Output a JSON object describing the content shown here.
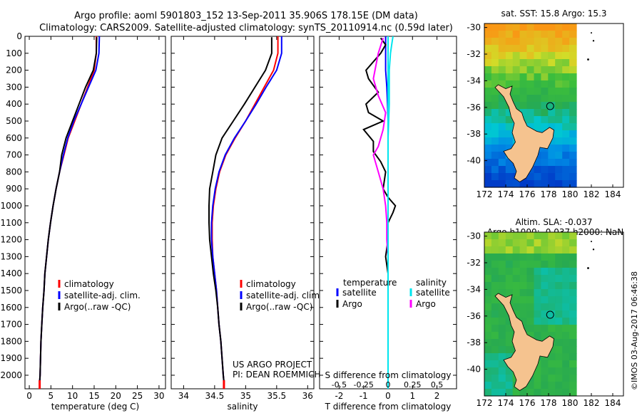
{
  "header": {
    "line1": "Argo profile: aoml 5901803_152 13-Sep-2011 35.906S 178.15E (DM data)",
    "line2": "Climatology: CARS2009. Satellite-adjusted climatology: synTS_20110914.nc (0.59d later)"
  },
  "colors": {
    "climatology": "#ff0000",
    "satellite": "#0000ff",
    "argo": "#000000",
    "sat_sal": "#00e5ee",
    "argo_sal": "#ff00ff"
  },
  "chart_data": [
    {
      "type": "line",
      "id": "temperature-profile",
      "xlabel": "temperature (deg C)",
      "ylabel": "",
      "xlim": [
        -1,
        31.5
      ],
      "ylim": [
        2080,
        0
      ],
      "xticks": [
        0,
        5,
        10,
        15,
        20,
        25,
        30
      ],
      "yticks": [
        0,
        100,
        200,
        300,
        400,
        500,
        600,
        700,
        800,
        900,
        1000,
        1100,
        1200,
        1300,
        1400,
        1500,
        1600,
        1700,
        1800,
        1900,
        2000
      ],
      "legend": [
        "climatology",
        "satellite-adj. clim.",
        "Argo(..raw -QC)"
      ],
      "series": [
        {
          "name": "climatology",
          "color": "#ff0000",
          "points": [
            [
              15.5,
              0
            ],
            [
              15.5,
              100
            ],
            [
              15.0,
              200
            ],
            [
              13.5,
              300
            ],
            [
              12.0,
              400
            ],
            [
              10.5,
              500
            ],
            [
              9.0,
              600
            ],
            [
              8.0,
              700
            ],
            [
              7.0,
              800
            ],
            [
              6.2,
              900
            ],
            [
              5.5,
              1000
            ],
            [
              4.9,
              1100
            ],
            [
              4.4,
              1200
            ],
            [
              4.0,
              1300
            ],
            [
              3.6,
              1400
            ],
            [
              3.4,
              1500
            ],
            [
              3.1,
              1600
            ],
            [
              2.9,
              1700
            ],
            [
              2.7,
              1800
            ],
            [
              2.6,
              1900
            ],
            [
              2.5,
              2000
            ],
            [
              2.4,
              2040
            ]
          ]
        },
        {
          "name": "satellite-adj. clim.",
          "color": "#0000ff",
          "points": [
            [
              16.2,
              0
            ],
            [
              16.1,
              100
            ],
            [
              15.4,
              200
            ],
            [
              13.7,
              300
            ],
            [
              12.0,
              400
            ],
            [
              10.3,
              500
            ],
            [
              8.9,
              600
            ],
            [
              7.9,
              700
            ],
            [
              7.0,
              800
            ],
            [
              6.2,
              900
            ],
            [
              5.5,
              1000
            ],
            [
              4.9,
              1100
            ],
            [
              4.4,
              1200
            ],
            [
              4.0,
              1300
            ],
            [
              3.6,
              1400
            ],
            [
              3.4,
              1500
            ],
            [
              3.1,
              1600
            ],
            [
              2.9,
              1700
            ],
            [
              2.7,
              1800
            ],
            [
              2.6,
              1900
            ],
            [
              2.5,
              2000
            ],
            [
              2.4,
              2040
            ]
          ]
        },
        {
          "name": "Argo(..raw -QC)",
          "color": "#000000",
          "points": [
            [
              15.6,
              5
            ],
            [
              15.5,
              100
            ],
            [
              14.8,
              200
            ],
            [
              13.0,
              300
            ],
            [
              11.5,
              400
            ],
            [
              10.0,
              500
            ],
            [
              8.5,
              600
            ],
            [
              7.5,
              700
            ],
            [
              7.0,
              800
            ],
            [
              6.2,
              900
            ],
            [
              5.5,
              1000
            ],
            [
              4.9,
              1100
            ],
            [
              4.4,
              1200
            ],
            [
              4.0,
              1300
            ],
            [
              3.6,
              1400
            ],
            [
              3.4,
              1500
            ],
            [
              3.1,
              1600
            ],
            [
              2.9,
              1700
            ],
            [
              2.7,
              1800
            ],
            [
              2.6,
              1900
            ],
            [
              2.5,
              2000
            ],
            [
              2.4,
              2040
            ]
          ]
        }
      ]
    },
    {
      "type": "line",
      "id": "salinity-profile",
      "xlabel": "salinity",
      "ylabel": "",
      "xlim": [
        33.8,
        36.1
      ],
      "ylim": [
        2080,
        0
      ],
      "xticks": [
        34,
        34.5,
        35,
        35.5,
        36
      ],
      "legend": [
        "climatology",
        "satellite-adj. clim.",
        "Argo(..raw -QC)"
      ],
      "annotation": [
        "US ARGO PROJECT",
        "PI: DEAN ROEMMICH"
      ],
      "series": [
        {
          "name": "climatology",
          "color": "#ff0000",
          "points": [
            [
              35.52,
              0
            ],
            [
              35.52,
              100
            ],
            [
              35.45,
              200
            ],
            [
              35.3,
              300
            ],
            [
              35.15,
              400
            ],
            [
              35.0,
              500
            ],
            [
              34.83,
              600
            ],
            [
              34.68,
              700
            ],
            [
              34.58,
              800
            ],
            [
              34.52,
              900
            ],
            [
              34.48,
              1000
            ],
            [
              34.46,
              1100
            ],
            [
              34.46,
              1200
            ],
            [
              34.47,
              1300
            ],
            [
              34.5,
              1400
            ],
            [
              34.53,
              1500
            ],
            [
              34.55,
              1600
            ],
            [
              34.57,
              1700
            ],
            [
              34.6,
              1800
            ],
            [
              34.62,
              1900
            ],
            [
              34.64,
              2000
            ],
            [
              34.65,
              2040
            ]
          ]
        },
        {
          "name": "satellite-adj. clim.",
          "color": "#0000ff",
          "points": [
            [
              35.58,
              0
            ],
            [
              35.58,
              100
            ],
            [
              35.5,
              200
            ],
            [
              35.33,
              300
            ],
            [
              35.17,
              400
            ],
            [
              35.0,
              500
            ],
            [
              34.82,
              600
            ],
            [
              34.67,
              700
            ],
            [
              34.57,
              800
            ],
            [
              34.51,
              900
            ],
            [
              34.47,
              1000
            ],
            [
              34.45,
              1100
            ],
            [
              34.45,
              1200
            ],
            [
              34.47,
              1300
            ],
            [
              34.5,
              1400
            ],
            [
              34.53,
              1500
            ],
            [
              34.55,
              1600
            ],
            [
              34.57,
              1700
            ],
            [
              34.6,
              1800
            ],
            [
              34.62,
              1900
            ],
            [
              34.64,
              2000
            ],
            [
              34.65,
              2040
            ]
          ]
        },
        {
          "name": "Argo(..raw -QC)",
          "color": "#000000",
          "points": [
            [
              35.42,
              5
            ],
            [
              35.42,
              100
            ],
            [
              35.32,
              200
            ],
            [
              35.15,
              300
            ],
            [
              34.98,
              400
            ],
            [
              34.8,
              500
            ],
            [
              34.62,
              600
            ],
            [
              34.52,
              700
            ],
            [
              34.47,
              800
            ],
            [
              34.42,
              900
            ],
            [
              34.41,
              1000
            ],
            [
              34.41,
              1100
            ],
            [
              34.42,
              1200
            ],
            [
              34.45,
              1300
            ],
            [
              34.48,
              1400
            ],
            [
              34.52,
              1500
            ],
            [
              34.55,
              1600
            ],
            [
              34.57,
              1700
            ],
            [
              34.6,
              1800
            ],
            [
              34.62,
              1900
            ],
            [
              34.64,
              2000
            ],
            [
              34.65,
              2040
            ]
          ]
        }
      ]
    },
    {
      "type": "line",
      "id": "difference-profile",
      "xlabel": "T difference from climatology",
      "x2label": "S difference from climatology",
      "xlim": [
        -2.8,
        2.8
      ],
      "ylim": [
        2080,
        0
      ],
      "xticks": [
        -2,
        -1,
        0,
        1,
        2
      ],
      "x2ticks": [
        "-0.5",
        "-0.25",
        "0",
        "0.25",
        "0.5"
      ],
      "legend": {
        "temperature_title": "temperature",
        "salinity_title": "salinity",
        "sat": "satellite",
        "argo": "Argo"
      },
      "series": [
        {
          "name": "temperature satellite",
          "color": "#0000ff",
          "points": [
            [
              -0.1,
              0
            ],
            [
              -0.1,
              50
            ],
            [
              -0.1,
              100
            ],
            [
              -0.1,
              200
            ],
            [
              -0.05,
              300
            ],
            [
              -0.02,
              400
            ],
            [
              0,
              500
            ],
            [
              0,
              700
            ],
            [
              0,
              900
            ],
            [
              0,
              1100
            ],
            [
              0,
              1500
            ],
            [
              0,
              2040
            ]
          ]
        },
        {
          "name": "temperature Argo",
          "color": "#000000",
          "points": [
            [
              -0.3,
              10
            ],
            [
              -0.1,
              50
            ],
            [
              -0.3,
              100
            ],
            [
              -0.9,
              200
            ],
            [
              -0.8,
              250
            ],
            [
              -0.4,
              330
            ],
            [
              -0.9,
              400
            ],
            [
              -0.8,
              450
            ],
            [
              -0.2,
              500
            ],
            [
              -1.0,
              550
            ],
            [
              -0.6,
              620
            ],
            [
              -0.6,
              680
            ],
            [
              -0.3,
              740
            ],
            [
              -0.1,
              800
            ],
            [
              -0.2,
              900
            ],
            [
              0,
              950
            ],
            [
              0.3,
              1000
            ],
            [
              0.2,
              1040
            ],
            [
              0,
              1100
            ],
            [
              0,
              1200
            ],
            [
              -0.1,
              1300
            ],
            [
              0,
              1400
            ],
            [
              0,
              2040
            ]
          ]
        },
        {
          "name": "salinity satellite",
          "color": "#00e5ee",
          "points": [
            [
              0.2,
              0
            ],
            [
              0.15,
              50
            ],
            [
              0.1,
              100
            ],
            [
              0.05,
              200
            ],
            [
              0.05,
              400
            ],
            [
              0,
              600
            ],
            [
              0,
              900
            ],
            [
              0,
              1200
            ],
            [
              0,
              2040
            ]
          ]
        },
        {
          "name": "salinity Argo",
          "color": "#ff00ff",
          "points": [
            [
              -0.2,
              10
            ],
            [
              -0.4,
              100
            ],
            [
              -0.6,
              250
            ],
            [
              -0.4,
              350
            ],
            [
              -0.1,
              450
            ],
            [
              -0.2,
              550
            ],
            [
              -0.4,
              650
            ],
            [
              -0.6,
              700
            ],
            [
              -0.4,
              800
            ],
            [
              -0.2,
              900
            ],
            [
              -0.1,
              1000
            ],
            [
              -0.05,
              1100
            ],
            [
              -0.05,
              1200
            ],
            [
              0,
              1300
            ],
            [
              0,
              1450
            ],
            [
              0,
              2040
            ]
          ]
        }
      ]
    },
    {
      "type": "heatmap",
      "id": "sst-map",
      "title": "sat. SST: 15.8 Argo: 15.3",
      "xlim": [
        172,
        185
      ],
      "ylim": [
        -42,
        -29.7
      ],
      "xticks": [
        172,
        174,
        176,
        178,
        180,
        182,
        184
      ],
      "yticks": [
        -30,
        -32,
        -34,
        -36,
        -38,
        -40
      ],
      "ytick_labels": [
        "-30",
        "-32",
        "-34",
        "-36",
        "-38",
        "-40"
      ],
      "float_position": [
        178.15,
        -35.906
      ]
    },
    {
      "type": "heatmap",
      "id": "sla-map",
      "title": "Altim. SLA: -0.037",
      "subtitle": "Argo h1000: -0.037 h2000: NaN",
      "xlim": [
        172,
        185
      ],
      "ylim": [
        -42,
        -29.7
      ],
      "xticks": [
        172,
        174,
        176,
        178,
        180,
        182,
        184
      ],
      "yticks": [
        -30,
        -32,
        -34,
        -36,
        -38,
        -40
      ],
      "ytick_labels": [
        "-30",
        "-32",
        "-34",
        "-36",
        "-38",
        "-40"
      ],
      "float_position": [
        178.15,
        -35.906
      ]
    }
  ],
  "credit": "©IMOS 03-Aug-2017 06:46:38"
}
